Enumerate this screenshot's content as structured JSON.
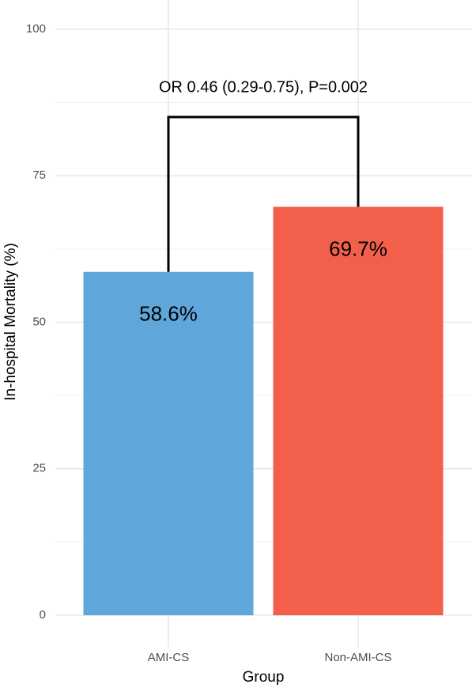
{
  "chart_data": {
    "type": "bar",
    "annotation": "OR 0.46 (0.29-0.75), P=0.002",
    "x_label": "Group",
    "y_label": "In-hospital Mortality (%)",
    "categories": [
      "AMI-CS",
      "Non-AMI-CS"
    ],
    "values": [
      58.6,
      69.7
    ],
    "value_labels": [
      "58.6%",
      "69.7%"
    ],
    "colors": [
      "#5fa6db",
      "#f2604b"
    ],
    "ylim": [
      0,
      100
    ],
    "yticks": [
      0,
      25,
      50,
      75,
      100
    ],
    "grid": true
  }
}
